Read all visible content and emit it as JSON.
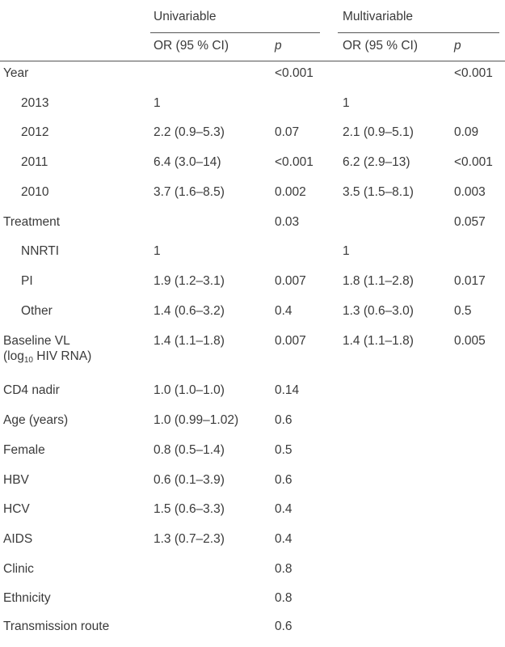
{
  "header": {
    "group1": "Univariable",
    "group2": "Multivariable",
    "or_label": "OR (95 % CI)",
    "p_label": "p"
  },
  "rows": [
    {
      "label": "Year",
      "uni_or": "",
      "uni_p": "<0.001",
      "multi_or": "",
      "multi_p": "<0.001"
    },
    {
      "label": "2013",
      "uni_or": "1",
      "uni_p": "",
      "multi_or": "1",
      "multi_p": ""
    },
    {
      "label": "2012",
      "uni_or": "2.2 (0.9–5.3)",
      "uni_p": "0.07",
      "multi_or": "2.1 (0.9–5.1)",
      "multi_p": "0.09"
    },
    {
      "label": "2011",
      "uni_or": "6.4 (3.0–14)",
      "uni_p": "<0.001",
      "multi_or": "6.2 (2.9–13)",
      "multi_p": "<0.001"
    },
    {
      "label": "2010",
      "uni_or": "3.7 (1.6–8.5)",
      "uni_p": "0.002",
      "multi_or": "3.5 (1.5–8.1)",
      "multi_p": "0.003"
    },
    {
      "label": "Treatment",
      "uni_or": "",
      "uni_p": "0.03",
      "multi_or": "",
      "multi_p": "0.057"
    },
    {
      "label": "NNRTI",
      "uni_or": "1",
      "uni_p": "",
      "multi_or": "1",
      "multi_p": ""
    },
    {
      "label": "PI",
      "uni_or": "1.9 (1.2–3.1)",
      "uni_p": "0.007",
      "multi_or": "1.8 (1.1–2.8)",
      "multi_p": "0.017"
    },
    {
      "label": "Other",
      "uni_or": "1.4 (0.6–3.2)",
      "uni_p": "0.4",
      "multi_or": "1.3 (0.6–3.0)",
      "multi_p": "0.5"
    },
    {
      "label": "Baseline VL",
      "label_line2_pre": "(log",
      "label_line2_sub": "10",
      "label_line2_post": " HIV RNA)",
      "uni_or": "1.4 (1.1–1.8)",
      "uni_p": "0.007",
      "multi_or": "1.4 (1.1–1.8)",
      "multi_p": "0.005"
    },
    {
      "label": "CD4 nadir",
      "uni_or": "1.0 (1.0–1.0)",
      "uni_p": "0.14",
      "multi_or": "",
      "multi_p": ""
    },
    {
      "label": "Age (years)",
      "uni_or": "1.0 (0.99–1.02)",
      "uni_p": "0.6",
      "multi_or": "",
      "multi_p": ""
    },
    {
      "label": "Female",
      "uni_or": "0.8 (0.5–1.4)",
      "uni_p": "0.5",
      "multi_or": "",
      "multi_p": ""
    },
    {
      "label": "HBV",
      "uni_or": "0.6 (0.1–3.9)",
      "uni_p": "0.6",
      "multi_or": "",
      "multi_p": ""
    },
    {
      "label": "HCV",
      "uni_or": "1.5 (0.6–3.3)",
      "uni_p": "0.4",
      "multi_or": "",
      "multi_p": ""
    },
    {
      "label": "AIDS",
      "uni_or": "1.3 (0.7–2.3)",
      "uni_p": "0.4",
      "multi_or": "",
      "multi_p": ""
    },
    {
      "label": "Clinic",
      "uni_or": "",
      "uni_p": "0.8",
      "multi_or": "",
      "multi_p": ""
    },
    {
      "label": "Ethnicity",
      "uni_or": "",
      "uni_p": "0.8",
      "multi_or": "",
      "multi_p": ""
    },
    {
      "label": "Transmission route",
      "uni_or": "",
      "uni_p": "0.6",
      "multi_or": "",
      "multi_p": ""
    }
  ]
}
